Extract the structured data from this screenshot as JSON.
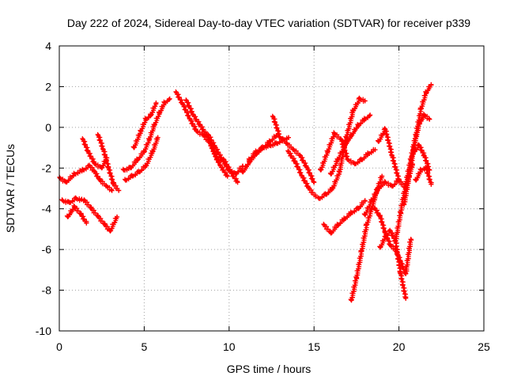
{
  "chart_data": {
    "type": "scatter",
    "title": "Day 222 of 2024, Sidereal Day-to-day VTEC variation (SDTVAR) for receiver p339",
    "xlabel": "GPS time / hours",
    "ylabel": "SDTVAR / TECUs",
    "xlim": [
      0,
      25
    ],
    "ylim": [
      -10,
      4
    ],
    "xticks": [
      0,
      5,
      10,
      15,
      20,
      25
    ],
    "yticks": [
      -10,
      -8,
      -6,
      -4,
      -2,
      0,
      2,
      4
    ],
    "grid": true,
    "marker": "plus",
    "color": "#ff0000",
    "series": [
      {
        "x": [
          0.05,
          0.4,
          0.9,
          1.4,
          1.8,
          2.1,
          2.4,
          2.8,
          3.1
        ],
        "y": [
          -2.5,
          -2.7,
          -2.3,
          -2.1,
          -1.9,
          -2.2,
          -2.6,
          -2.9,
          -3.1
        ]
      },
      {
        "x": [
          0.2,
          0.6,
          1.0,
          1.5,
          1.9,
          2.3,
          2.7,
          3.0,
          3.4
        ],
        "y": [
          -3.6,
          -3.7,
          -3.5,
          -3.6,
          -4.0,
          -4.4,
          -4.8,
          -5.1,
          -4.4
        ]
      },
      {
        "x": [
          0.5,
          0.9,
          1.3,
          1.6
        ],
        "y": [
          -4.4,
          -3.9,
          -4.3,
          -4.7
        ]
      },
      {
        "x": [
          1.4,
          1.7,
          2.1,
          2.5,
          2.8
        ],
        "y": [
          -0.6,
          -1.2,
          -1.8,
          -2.0,
          -1.5
        ]
      },
      {
        "x": [
          2.3,
          2.6,
          2.9,
          3.2,
          3.5
        ],
        "y": [
          -0.4,
          -1.1,
          -2.0,
          -2.8,
          -3.1
        ]
      },
      {
        "x": [
          3.8,
          4.2,
          4.6,
          5.0,
          5.3,
          5.6,
          5.9,
          6.2,
          6.5
        ],
        "y": [
          -2.1,
          -2.0,
          -1.6,
          -1.2,
          -0.6,
          0.1,
          0.7,
          1.2,
          1.4
        ]
      },
      {
        "x": [
          4.4,
          4.8,
          5.1,
          5.4,
          5.7
        ],
        "y": [
          -1.0,
          -0.2,
          0.4,
          0.6,
          1.2
        ]
      },
      {
        "x": [
          3.9,
          4.3,
          4.7,
          5.1,
          5.5,
          5.8
        ],
        "y": [
          -2.6,
          -2.4,
          -2.2,
          -1.9,
          -1.2,
          -0.5
        ]
      },
      {
        "x": [
          6.9,
          7.3,
          7.7,
          8.1,
          8.5,
          8.9,
          9.3,
          9.7,
          10.1,
          10.5
        ],
        "y": [
          1.7,
          1.1,
          0.4,
          -0.2,
          -0.4,
          -0.8,
          -1.6,
          -1.6,
          -2.2,
          -2.7
        ]
      },
      {
        "x": [
          7.5,
          7.9,
          8.3,
          8.7,
          9.1,
          9.5,
          9.9
        ],
        "y": [
          1.3,
          0.6,
          0.1,
          -0.4,
          -1.2,
          -1.9,
          -2.4
        ]
      },
      {
        "x": [
          8.8,
          9.2,
          9.6,
          10.0,
          10.4,
          10.8
        ],
        "y": [
          -0.4,
          -1.0,
          -1.6,
          -2.1,
          -2.3,
          -1.9
        ]
      },
      {
        "x": [
          10.8,
          11.2,
          11.6,
          12.0,
          12.4,
          12.8
        ],
        "y": [
          -2.2,
          -1.7,
          -1.3,
          -1.0,
          -0.7,
          -0.4
        ]
      },
      {
        "x": [
          11.2,
          11.6,
          12.0,
          12.4,
          12.8,
          13.2,
          13.5
        ],
        "y": [
          -1.6,
          -1.2,
          -1.0,
          -0.9,
          -0.8,
          -0.6,
          -0.5
        ]
      },
      {
        "x": [
          12.6,
          13.0,
          13.4,
          13.8,
          14.2,
          14.6,
          15.0
        ],
        "y": [
          0.5,
          -0.5,
          -0.8,
          -1.1,
          -1.4,
          -2.0,
          -2.7
        ]
      },
      {
        "x": [
          13.5,
          13.9,
          14.3,
          14.7,
          15.1
        ],
        "y": [
          -1.2,
          -1.7,
          -2.4,
          -3.0,
          -3.4
        ]
      },
      {
        "x": [
          15.3,
          15.7,
          16.1,
          16.5,
          16.9,
          17.3,
          17.7,
          18.0
        ],
        "y": [
          -3.5,
          -3.3,
          -3.0,
          -2.2,
          -0.5,
          0.8,
          1.4,
          1.3
        ]
      },
      {
        "x": [
          15.4,
          15.8,
          16.2,
          16.6,
          17.0,
          17.4,
          17.8,
          18.2,
          18.6
        ],
        "y": [
          -2.1,
          -1.2,
          -0.3,
          -0.6,
          -1.6,
          -1.8,
          -1.6,
          -1.3,
          -1.1
        ]
      },
      {
        "x": [
          15.6,
          16.0,
          16.4,
          16.8,
          17.2,
          17.6,
          18.0
        ],
        "y": [
          -4.8,
          -5.2,
          -4.8,
          -4.5,
          -4.2,
          -4.0,
          -3.6
        ]
      },
      {
        "x": [
          16.0,
          16.4,
          16.8,
          17.2,
          17.6,
          18.0,
          18.3
        ],
        "y": [
          -2.3,
          -1.6,
          -0.9,
          -0.4,
          0.1,
          0.4,
          0.6
        ]
      },
      {
        "x": [
          17.2,
          17.5,
          17.8,
          18.1,
          18.4,
          18.7,
          19.0
        ],
        "y": [
          -8.5,
          -7.4,
          -6.1,
          -4.8,
          -4.0,
          -3.1,
          -2.4
        ]
      },
      {
        "x": [
          18.0,
          18.4,
          18.8,
          19.2,
          19.6,
          20.0
        ],
        "y": [
          -4.3,
          -3.6,
          -3.0,
          -2.7,
          -2.9,
          -2.6
        ]
      },
      {
        "x": [
          18.6,
          18.9,
          19.2,
          19.5,
          19.8,
          20.1,
          20.4,
          20.7
        ],
        "y": [
          -4.0,
          -4.4,
          -5.2,
          -5.8,
          -6.0,
          -6.6,
          -7.2,
          -5.5
        ]
      },
      {
        "x": [
          18.9,
          19.2,
          19.5,
          19.8,
          20.1,
          20.4
        ],
        "y": [
          -5.9,
          -5.4,
          -5.1,
          -5.6,
          -7.2,
          -8.4
        ]
      },
      {
        "x": [
          18.8,
          19.2,
          19.6,
          20.0,
          20.4,
          20.8
        ],
        "y": [
          -0.7,
          -0.1,
          -1.4,
          -2.6,
          -3.0,
          -1.8
        ]
      },
      {
        "x": [
          19.8,
          20.1,
          20.4,
          20.7,
          21.0,
          21.3,
          21.6,
          21.9
        ],
        "y": [
          -5.6,
          -4.2,
          -2.8,
          -1.6,
          -0.4,
          0.9,
          1.7,
          2.1
        ]
      },
      {
        "x": [
          20.3,
          20.6,
          20.9,
          21.2,
          21.5,
          21.8
        ],
        "y": [
          -3.8,
          -2.4,
          -0.9,
          0.2,
          0.6,
          0.4
        ]
      },
      {
        "x": [
          20.9,
          21.2,
          21.5,
          21.8
        ],
        "y": [
          -1.2,
          -0.9,
          -1.4,
          -2.1
        ]
      },
      {
        "x": [
          21.0,
          21.3,
          21.6,
          21.9
        ],
        "y": [
          -2.6,
          -2.1,
          -2.0,
          -2.8
        ]
      }
    ]
  }
}
